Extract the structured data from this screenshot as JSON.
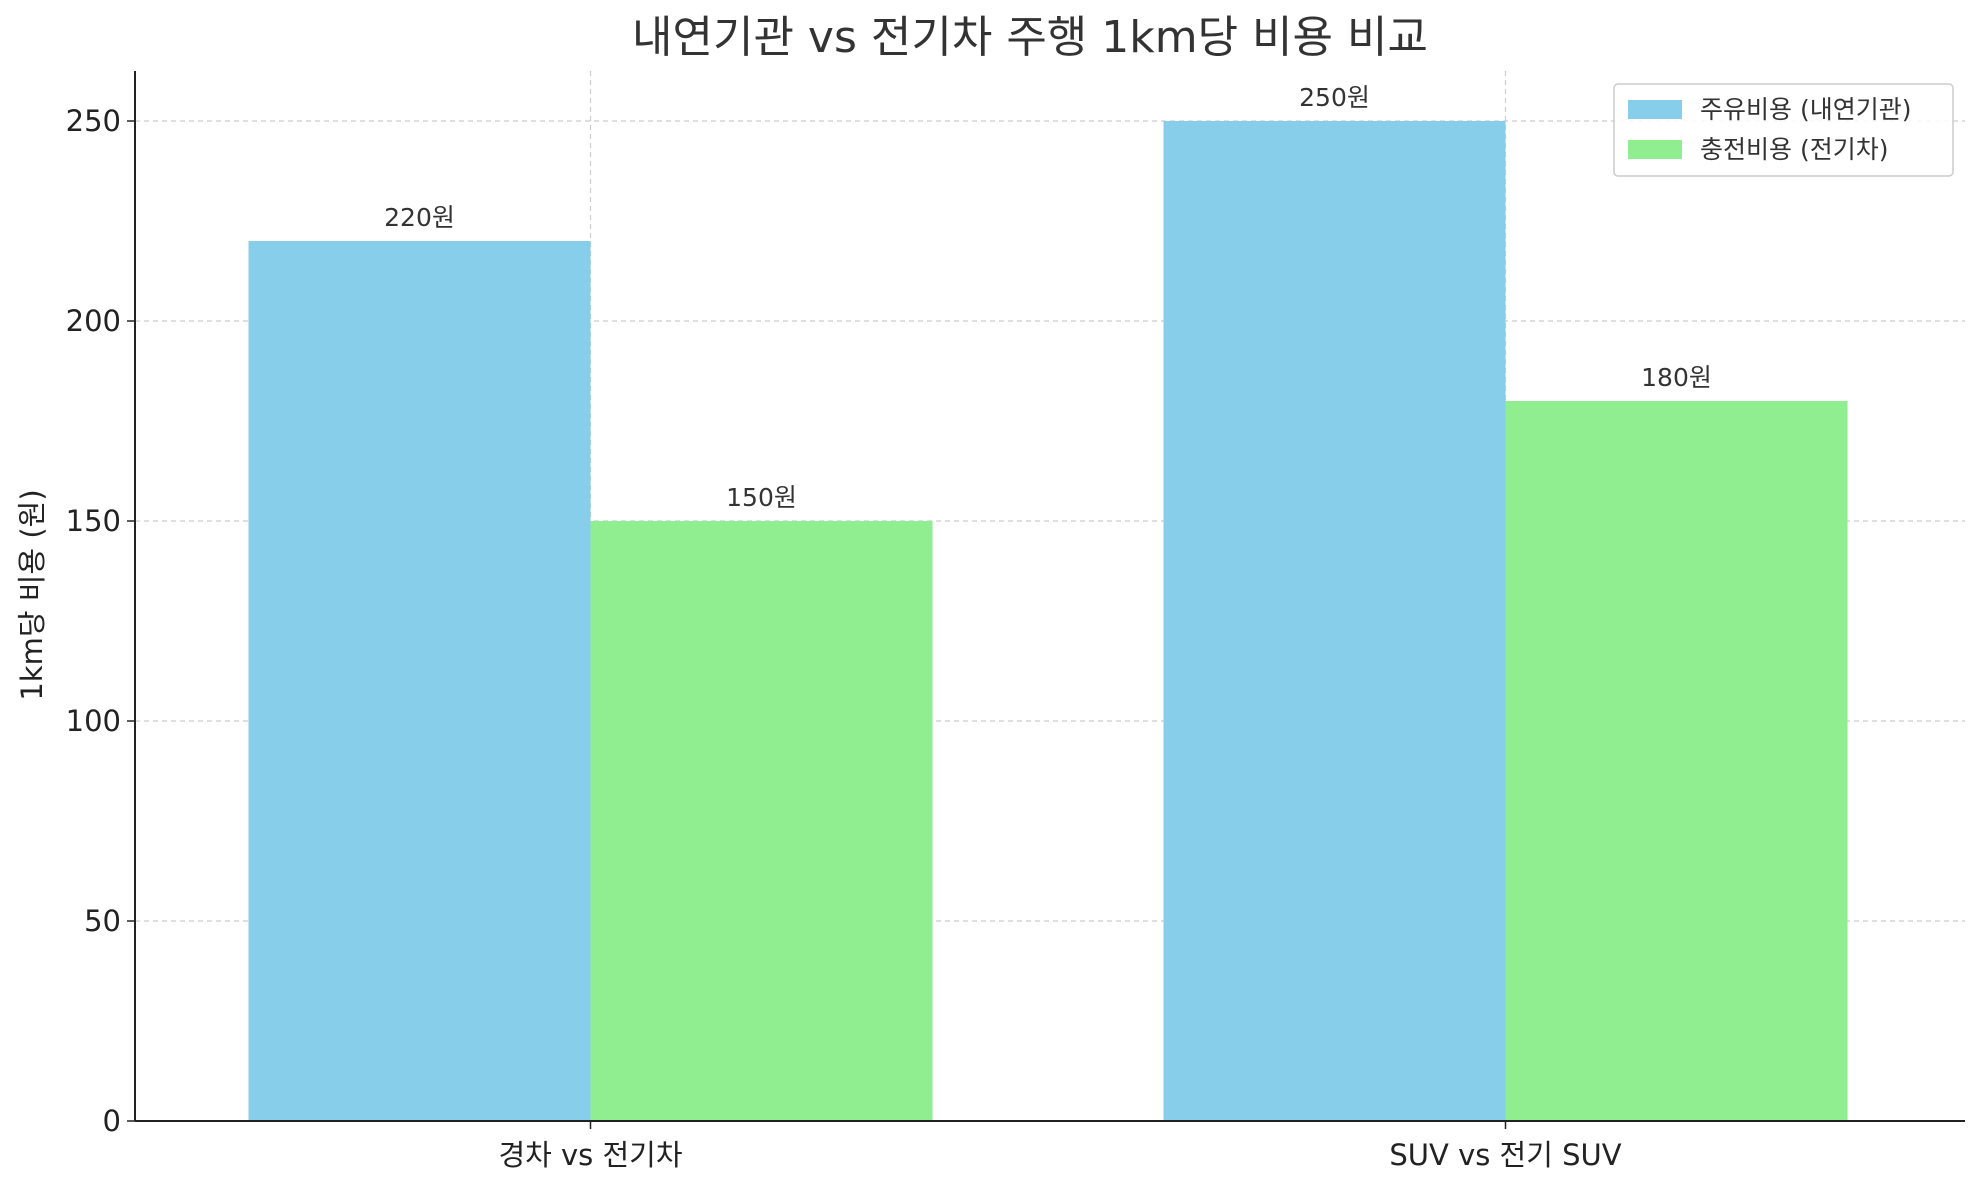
{
  "chart_data": {
    "type": "bar",
    "title": "내연기관 vs 전기차 주행 1km당 비용 비교",
    "xlabel": "",
    "ylabel": "1km당 비용 (원)",
    "categories": [
      "경차 vs 전기차",
      "SUV vs 전기 SUV"
    ],
    "series": [
      {
        "name": "주유비용 (내연기관)",
        "values": [
          220,
          250
        ],
        "color": "#87CEEB",
        "labels": [
          "220원",
          "250원"
        ]
      },
      {
        "name": "충전비용 (전기차)",
        "values": [
          150,
          180
        ],
        "color": "#90EE90",
        "labels": [
          "150원",
          "180원"
        ]
      }
    ],
    "ylim": [
      0,
      262.5
    ],
    "yticks": [
      0,
      50,
      100,
      150,
      200,
      250
    ],
    "grid": true,
    "legend_position": "top-right"
  }
}
